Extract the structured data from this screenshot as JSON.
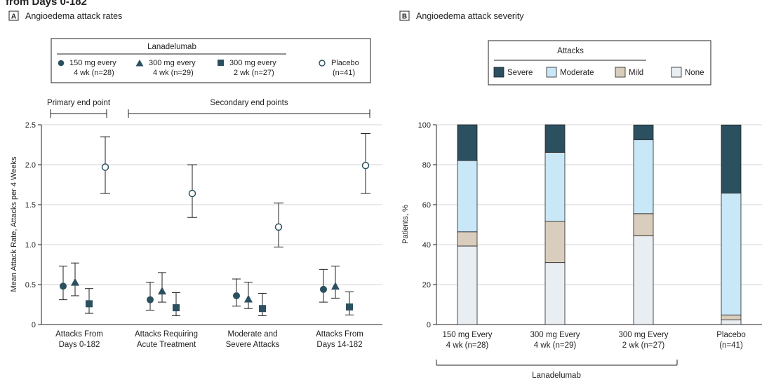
{
  "page": {
    "cut_title": "from Days 0-182"
  },
  "chart_data": [
    {
      "panel": "A",
      "title": "Angioedema attack rates",
      "type": "scatter",
      "ylabel": "Mean Attack Rate, Attacks per 4 Weeks",
      "ylim": [
        0,
        2.5
      ],
      "yticks": [
        "0",
        "0.5",
        "1.0",
        "1.5",
        "2.0",
        "2.5"
      ],
      "categories": [
        [
          "Attacks From",
          "Days 0-182"
        ],
        [
          "Attacks Requiring",
          "Acute Treatment"
        ],
        [
          "Moderate and",
          "Severe Attacks"
        ],
        [
          "Attacks From",
          "Days 14-182"
        ]
      ],
      "bracket_primary": "Primary end point",
      "bracket_secondary": "Secondary end points",
      "legend_title": "Lanadelumab",
      "series": [
        {
          "name": "150 mg every 4 wk (n=28)",
          "label_lines": [
            "150 mg every",
            "4 wk (n=28)"
          ],
          "marker": "circle",
          "values": [
            0.48,
            0.31,
            0.36,
            0.44
          ],
          "ci_low": [
            0.31,
            0.18,
            0.23,
            0.28
          ],
          "ci_high": [
            0.73,
            0.53,
            0.57,
            0.69
          ]
        },
        {
          "name": "300 mg every 4 wk (n=29)",
          "label_lines": [
            "300 mg every",
            "4 wk (n=29)"
          ],
          "marker": "triangle",
          "values": [
            0.53,
            0.42,
            0.32,
            0.48
          ],
          "ci_low": [
            0.36,
            0.28,
            0.2,
            0.33
          ],
          "ci_high": [
            0.77,
            0.65,
            0.53,
            0.73
          ]
        },
        {
          "name": "300 mg every 2 wk (n=27)",
          "label_lines": [
            "300 mg every",
            "2 wk (n=27)"
          ],
          "marker": "square",
          "values": [
            0.26,
            0.21,
            0.2,
            0.22
          ],
          "ci_low": [
            0.14,
            0.11,
            0.11,
            0.12
          ],
          "ci_high": [
            0.45,
            0.4,
            0.39,
            0.41
          ]
        },
        {
          "name": "Placebo (n=41)",
          "label_lines": [
            "Placebo",
            "(n=41)"
          ],
          "marker": "open-circle",
          "values": [
            1.97,
            1.64,
            1.22,
            1.99
          ],
          "ci_low": [
            1.64,
            1.34,
            0.97,
            1.64
          ],
          "ci_high": [
            2.35,
            2.0,
            1.52,
            2.39
          ]
        }
      ]
    },
    {
      "panel": "B",
      "title": "Angioedema attack severity",
      "type": "bar",
      "stacked": true,
      "ylabel": "Patients, %",
      "ylim": [
        0,
        100
      ],
      "yticks": [
        "0",
        "20",
        "40",
        "60",
        "80",
        "100"
      ],
      "legend_title": "Attacks",
      "categories": [
        [
          "150 mg Every",
          "4 wk (n=28)"
        ],
        [
          "300 mg Every",
          "4 wk (n=29)"
        ],
        [
          "300 mg Every",
          "2 wk (n=27)"
        ],
        [
          "Placebo",
          "(n=41)"
        ]
      ],
      "group_label": "Lanadelumab",
      "series": [
        {
          "name": "None",
          "color": "#e8eef2",
          "values": [
            39.3,
            31.0,
            44.4,
            2.4
          ]
        },
        {
          "name": "Mild",
          "color": "#d9cebd",
          "values": [
            7.1,
            20.7,
            11.1,
            2.4
          ]
        },
        {
          "name": "Moderate",
          "color": "#c8e7f7",
          "values": [
            35.7,
            34.5,
            37.0,
            61.0
          ]
        },
        {
          "name": "Severe",
          "color": "#2b5060",
          "values": [
            17.9,
            13.8,
            7.4,
            34.1
          ]
        }
      ],
      "legend_order": [
        "Severe",
        "Moderate",
        "Mild",
        "None"
      ]
    }
  ],
  "colors": {
    "marker_fill": "#2b5060",
    "axis": "#231f20",
    "grid": "#d6d6d6"
  }
}
